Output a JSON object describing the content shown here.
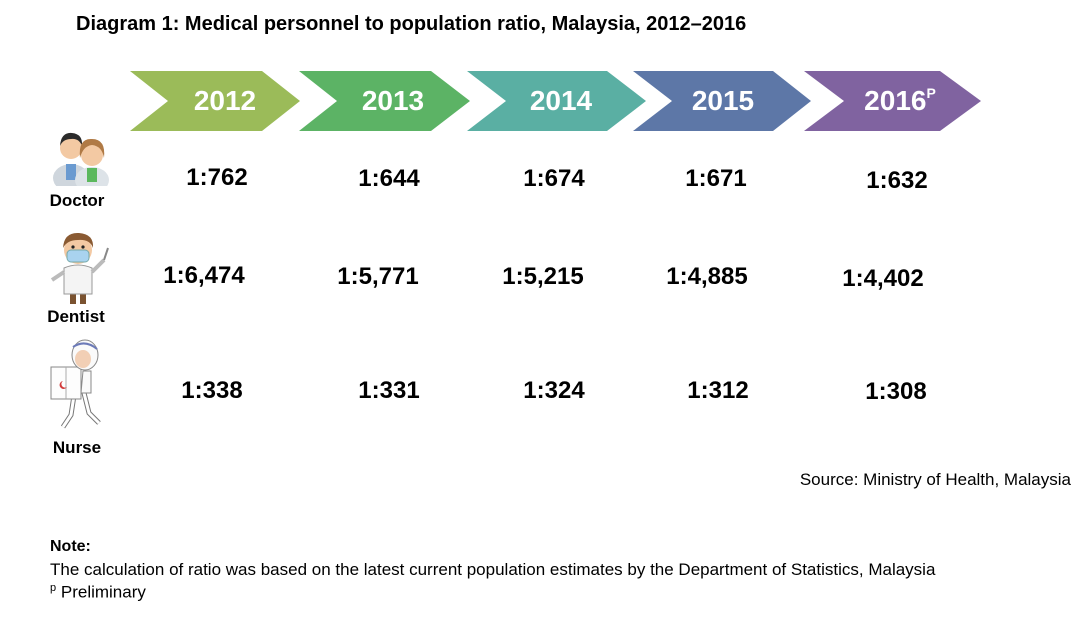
{
  "title": "Diagram 1: Medical personnel to population ratio, Malaysia, 2012–2016",
  "years": [
    {
      "label": "2012",
      "sup": "",
      "color": "#9bbb59"
    },
    {
      "label": "2013",
      "sup": "",
      "color": "#5cb365"
    },
    {
      "label": "2014",
      "sup": "",
      "color": "#5aafa3"
    },
    {
      "label": "2015",
      "sup": "",
      "color": "#5d77a7"
    },
    {
      "label": "2016",
      "sup": "P",
      "color": "#8063a0"
    }
  ],
  "rows": [
    {
      "label": "Doctor",
      "icon": "doctor-icon",
      "values": [
        "1:762",
        "1:644",
        "1:674",
        "1:671",
        "1:632"
      ]
    },
    {
      "label": "Dentist",
      "icon": "dentist-icon",
      "values": [
        "1:6,474",
        "1:5,771",
        "1:5,215",
        "1:4,885",
        "1:4,402"
      ]
    },
    {
      "label": "Nurse",
      "icon": "nurse-icon",
      "values": [
        "1:338",
        "1:331",
        "1:324",
        "1:312",
        "1:308"
      ]
    }
  ],
  "source": "Source: Ministry of Health, Malaysia",
  "note": {
    "heading": "Note:",
    "text": "The calculation of ratio was based on the latest current population estimates by the Department of Statistics, Malaysia",
    "p_marker": "p",
    "p_text": "Preliminary"
  }
}
